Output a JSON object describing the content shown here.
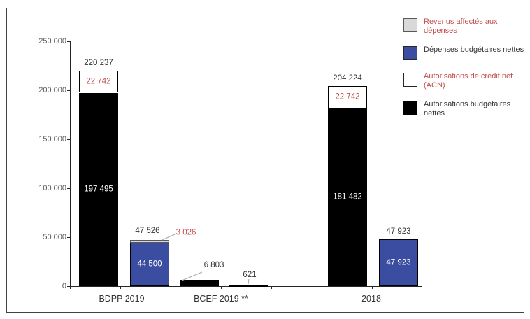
{
  "figure": {
    "background": "#ffffff",
    "border_color": "#424242"
  },
  "colors": {
    "blue": "#3B4DA0",
    "light_gray": "#D9D9D9",
    "red": "#C0504D",
    "black": "#000000",
    "white": "#FFFFFF",
    "axis": "#262626",
    "tick_label": "#595959",
    "value_label": "#333333",
    "leader_line": "#A6A6A6"
  },
  "legend": {
    "position": "top-right",
    "items": [
      {
        "id": "revenus_affectes_aux_depenses",
        "label": "Revenus affectés aux dépenses",
        "swatch": "gray",
        "text_color": "red"
      },
      {
        "id": "depenses_budgetaires_nettes",
        "label": "Dépenses budgétaires nettes",
        "swatch": "blue",
        "text_color": "dark"
      },
      {
        "id": "autorisations_credit_net",
        "label": "Autorisations de crédit net (ACN)",
        "swatch": "white",
        "text_color": "red"
      },
      {
        "id": "autorisations_budgetaires_nettes",
        "label": "Autorisations budgétaires nettes",
        "swatch": "black",
        "text_color": "dark"
      }
    ]
  },
  "chart_data": {
    "type": "bar",
    "stacked": true,
    "grid": false,
    "legend_position": "top-right",
    "ylim": [
      0,
      250000
    ],
    "yticks": [
      {
        "value": 0,
        "label": "0"
      },
      {
        "value": 50000,
        "label": "50 000"
      },
      {
        "value": 100000,
        "label": "100 000"
      },
      {
        "value": 150000,
        "label": "150 000"
      },
      {
        "value": 200000,
        "label": "200 000"
      },
      {
        "value": 250000,
        "label": "250 000"
      }
    ],
    "categories": [
      "BDPP 2019",
      "BCEF 2019 **",
      "2018"
    ],
    "series_colors": {
      "autorisations_budgetaires_nettes": "black",
      "autorisations_credit_net": "white",
      "depenses_budgetaires_nettes": "blue",
      "revenus_affectes_aux_depenses": "light_gray"
    },
    "bars": [
      {
        "category": "BDPP 2019",
        "total": 220237,
        "total_label": "220 237",
        "segments": [
          {
            "series": "autorisations_budgetaires_nettes",
            "value": 197495,
            "label": "197 495",
            "label_style": "inside-white"
          },
          {
            "series": "autorisations_credit_net",
            "value": 22742,
            "label": "22 742",
            "label_style": "inside-red"
          }
        ]
      },
      {
        "category": "BDPP 2019",
        "total": 47526,
        "total_label": "47 526",
        "segments": [
          {
            "series": "depenses_budgetaires_nettes",
            "value": 44500,
            "label": "44 500",
            "label_style": "inside-white"
          },
          {
            "series": "revenus_affectes_aux_depenses",
            "value": 3026,
            "label": "3 026",
            "label_style": "callout-red"
          }
        ]
      },
      {
        "category": "BCEF 2019 **",
        "total": 6803,
        "total_label": "6 803",
        "segments": [
          {
            "series": "autorisations_budgetaires_nettes",
            "value": 6803,
            "label": null,
            "label_style": null
          }
        ]
      },
      {
        "category": "BCEF 2019 **",
        "total": 621,
        "total_label": "621",
        "segments": [
          {
            "series": "depenses_budgetaires_nettes",
            "value": 621,
            "label": null,
            "label_style": null
          }
        ]
      },
      {
        "category": "2018",
        "total": 204224,
        "total_label": "204 224",
        "segments": [
          {
            "series": "autorisations_budgetaires_nettes",
            "value": 181482,
            "label": "181 482",
            "label_style": "inside-white"
          },
          {
            "series": "autorisations_credit_net",
            "value": 22742,
            "label": "22 742",
            "label_style": "inside-red"
          }
        ]
      },
      {
        "category": "2018",
        "total": 47923,
        "total_label": "47 923",
        "segments": [
          {
            "series": "depenses_budgetaires_nettes",
            "value": 47923,
            "label": "47 923",
            "label_style": "inside-white"
          }
        ]
      }
    ]
  }
}
